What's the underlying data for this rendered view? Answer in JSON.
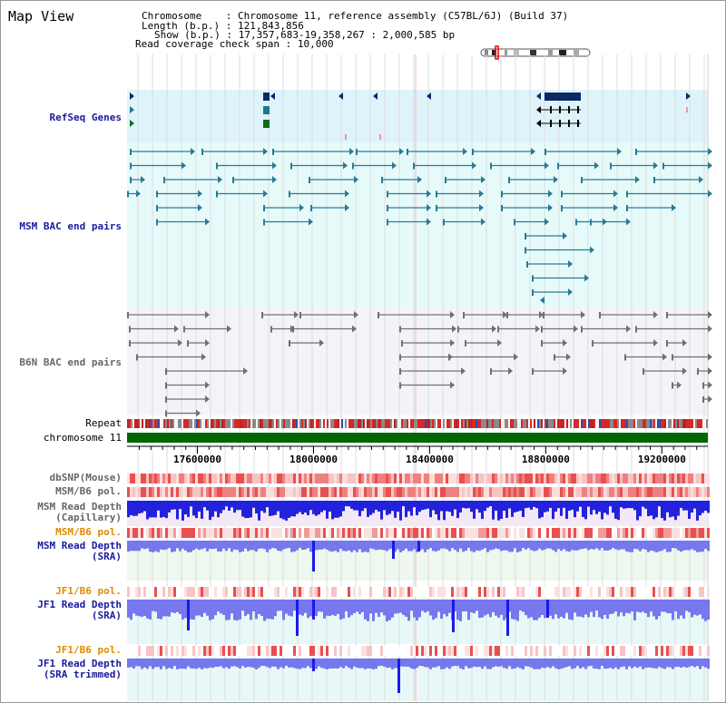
{
  "header": {
    "title": "Map View",
    "chromosome_key": "Chromosome",
    "chromosome_value": "Chromosome 11, reference assembly (C57BL/6J) (Build 37)",
    "length_key": "Length (b.p.)",
    "length_value": "121,843,856",
    "show_key": "Show (b.p.)",
    "show_value": "17,357,683-19,358,267 : 2,000,585 bp",
    "read_cov_key": "Read coverage check span",
    "read_cov_value": "10,000"
  },
  "tracks": {
    "refseq": "RefSeq Genes",
    "msm_bac": "MSM BAC end pairs",
    "b6n_bac": "B6N BAC end pairs",
    "repeat": "Repeat",
    "chromosome": "chromosome 11",
    "dbsnp": "dbSNP(Mouse)",
    "msm_b6_pol_1": "MSM/B6 pol.",
    "msm_read_depth_cap_1": "MSM Read Depth",
    "msm_read_depth_cap_2": "(Capillary)",
    "msm_b6_pol_2": "MSM/B6 pol.",
    "msm_read_depth_sra_1": "MSM Read Depth",
    "msm_read_depth_sra_2": "(SRA)",
    "jf1_b6_pol_1": "JF1/B6 pol.",
    "jf1_read_depth_sra_1": "JF1 Read Depth",
    "jf1_read_depth_sra_2": "(SRA)",
    "jf1_b6_pol_2": "JF1/B6 pol.",
    "jf1_read_depth_trim_1": "JF1 Read Depth",
    "jf1_read_depth_trim_2": "(SRA trimmed)"
  },
  "axis": {
    "start_bp": 17357683,
    "end_bp": 19358267,
    "ticks": [
      {
        "label": "17600000",
        "bp": 17600000
      },
      {
        "label": "18000000",
        "bp": 18000000
      },
      {
        "label": "18400000",
        "bp": 18400000
      },
      {
        "label": "18800000",
        "bp": 18800000
      },
      {
        "label": "19200000",
        "bp": 19200000
      }
    ]
  },
  "colors": {
    "refseq_bg": "#dff3fb",
    "msm_bg": "#e6fafa",
    "b6n_bg": "#f4f4f8",
    "gene_dark": "#0a2a66",
    "gene_teal": "#1a7a8a",
    "gene_green": "#0b6e1e",
    "bac_teal": "#2a7a96",
    "bac_gray": "#707070",
    "chrom_green": "#006600",
    "snp_red": "#e23b3b",
    "depth_blue": "#1a1aee",
    "depth_light": "#7777ee",
    "accent_orange": "#e08a00"
  }
}
